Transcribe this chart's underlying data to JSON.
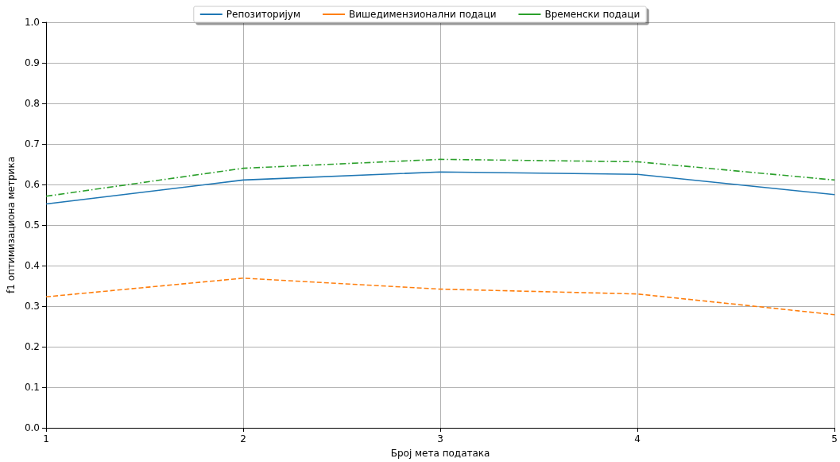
{
  "chart_data": {
    "type": "line",
    "xlabel": "Број мета података",
    "ylabel": "f1 оптимизациона метрика",
    "x": [
      1,
      2,
      3,
      4,
      5
    ],
    "series": [
      {
        "name": "Репозиторијум",
        "color": "#1f77b4",
        "line_style": "solid",
        "values": [
          0.552,
          0.611,
          0.631,
          0.625,
          0.575
        ]
      },
      {
        "name": "Вишедимензионални подаци",
        "color": "#ff7f0e",
        "line_style": "dashed",
        "values": [
          0.323,
          0.369,
          0.342,
          0.33,
          0.279
        ]
      },
      {
        "name": "Временски подаци",
        "color": "#2ca02c",
        "line_style": "dashdot",
        "values": [
          0.571,
          0.64,
          0.662,
          0.656,
          0.611
        ]
      }
    ],
    "xlim": [
      1,
      5
    ],
    "xticks": [
      1,
      2,
      3,
      4,
      5
    ],
    "ylim": [
      0,
      1
    ],
    "yticks": [
      {
        "value": 0,
        "label": "0.0"
      },
      0.1,
      0.2,
      0.3,
      0.4,
      0.5,
      0.6,
      0.7,
      0.8,
      0.9,
      {
        "value": 1,
        "label": "1.0"
      }
    ],
    "grid": true,
    "legend": "top",
    "marker": "none"
  }
}
